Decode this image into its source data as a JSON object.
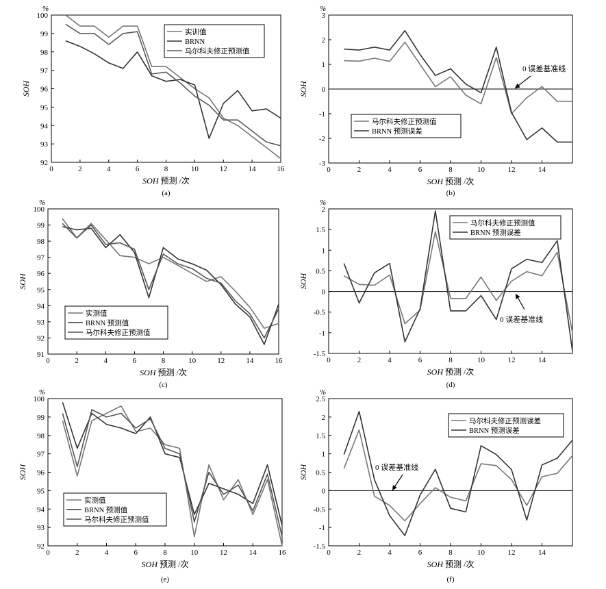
{
  "chart_data": [
    {
      "type": "line",
      "caption": "(a)",
      "unit": "%",
      "ylabel": "SOH",
      "xlabel": "SOH 预测 /次",
      "xlim": [
        0,
        16
      ],
      "ylim": [
        92,
        100
      ],
      "xticks": [
        0,
        2,
        4,
        6,
        8,
        10,
        12,
        14,
        16
      ],
      "yticks": [
        92,
        93,
        94,
        95,
        96,
        97,
        98,
        99,
        100
      ],
      "legend_position": "top-right",
      "x": [
        1,
        2,
        3,
        4,
        5,
        6,
        7,
        8,
        9,
        10,
        11,
        12,
        13,
        14,
        15,
        16
      ],
      "series": [
        {
          "name": "实训值",
          "color": "#777777",
          "values": [
            100.0,
            99.4,
            99.4,
            98.8,
            99.4,
            99.4,
            97.2,
            97.2,
            96.6,
            96.0,
            95.5,
            94.4,
            94.0,
            93.4,
            92.8,
            92.2
          ]
        },
        {
          "name": "BRNN",
          "color": "#333333",
          "values": [
            98.6,
            98.3,
            97.9,
            97.4,
            97.1,
            98.0,
            96.7,
            96.4,
            96.5,
            96.2,
            93.3,
            95.2,
            95.9,
            94.8,
            94.9,
            94.4
          ]
        },
        {
          "name": "马尔科夫修正预测值",
          "color": "#5a5a5a",
          "values": [
            99.5,
            99.0,
            99.0,
            98.4,
            99.0,
            99.1,
            96.8,
            96.9,
            96.3,
            95.6,
            95.1,
            94.3,
            94.3,
            93.7,
            93.1,
            92.9
          ]
        }
      ]
    },
    {
      "type": "line",
      "caption": "(b)",
      "unit": "%",
      "ylabel": "SOH",
      "xlabel": "SOH 预测 /次",
      "xlim": [
        0,
        16
      ],
      "ylim": [
        -3,
        3
      ],
      "xticks": [
        0,
        2,
        4,
        6,
        8,
        10,
        12,
        14
      ],
      "yticks": [
        -3,
        -2,
        -1,
        0,
        1,
        2,
        3
      ],
      "baseline": 0,
      "annotation": "0 误差基准线",
      "legend_position": "bottom-left",
      "x": [
        1,
        2,
        3,
        4,
        5,
        6,
        7,
        8,
        9,
        10,
        11,
        12,
        13,
        14,
        15,
        16
      ],
      "series": [
        {
          "name": "马尔科夫修正预测值",
          "color": "#777777",
          "values": [
            1.15,
            1.13,
            1.25,
            1.12,
            1.9,
            1.0,
            0.1,
            0.5,
            -0.25,
            -0.6,
            1.28,
            -1.0,
            -0.35,
            0.1,
            -0.5,
            -0.5
          ]
        },
        {
          "name": "BRNN 预测误差",
          "color": "#333333",
          "values": [
            1.62,
            1.58,
            1.7,
            1.58,
            2.37,
            1.4,
            0.55,
            0.82,
            0.2,
            -0.15,
            1.7,
            -0.95,
            -2.05,
            -1.58,
            -2.15,
            -2.15
          ]
        }
      ]
    },
    {
      "type": "line",
      "caption": "(c)",
      "unit": "%",
      "ylabel": "SOH",
      "xlabel": "SOH 预测 /次",
      "xlim": [
        0,
        16
      ],
      "ylim": [
        91,
        100
      ],
      "xticks": [
        0,
        2,
        4,
        6,
        8,
        10,
        12,
        14,
        16
      ],
      "yticks": [
        91,
        92,
        93,
        94,
        95,
        96,
        97,
        98,
        99,
        100
      ],
      "legend_position": "bottom-left",
      "x": [
        1,
        2,
        3,
        4,
        5,
        6,
        7,
        8,
        9,
        10,
        11,
        12,
        13,
        14,
        15,
        16
      ],
      "series": [
        {
          "name": "实测值",
          "color": "#777777",
          "values": [
            99.4,
            98.2,
            99.1,
            98.1,
            97.1,
            97.0,
            96.6,
            97.0,
            96.5,
            96.0,
            95.5,
            95.8,
            94.9,
            93.9,
            92.6,
            92.9
          ]
        },
        {
          "name": "BRNN 预测值",
          "color": "#333333",
          "values": [
            98.9,
            98.7,
            98.8,
            97.6,
            98.4,
            97.3,
            94.5,
            97.6,
            96.9,
            96.6,
            96.2,
            95.3,
            94.1,
            93.3,
            91.6,
            94.1
          ]
        },
        {
          "name": "马尔科夫修正预测值",
          "color": "#555555",
          "values": [
            99.1,
            98.2,
            99.0,
            97.8,
            97.9,
            97.5,
            95.0,
            97.2,
            96.6,
            96.3,
            95.7,
            95.4,
            94.3,
            93.5,
            92.0,
            93.8
          ]
        }
      ]
    },
    {
      "type": "line",
      "caption": "(d)",
      "unit": "%",
      "ylabel": "SOH",
      "xlabel": "SOH 预测 /次",
      "xlim": [
        0,
        16
      ],
      "ylim": [
        -1.5,
        2
      ],
      "xticks": [
        0,
        2,
        4,
        6,
        8,
        10,
        12,
        14
      ],
      "yticks": [
        -1.5,
        -1,
        -0.5,
        0,
        0.5,
        1,
        1.5,
        2
      ],
      "baseline": 0,
      "annotation": "0 误差基准线",
      "legend_position": "top-right",
      "x": [
        1,
        2,
        3,
        4,
        5,
        6,
        7,
        8,
        9,
        10,
        11,
        12,
        13,
        14,
        15,
        16
      ],
      "series": [
        {
          "name": "马尔科夫修正预测值",
          "color": "#777777",
          "values": [
            0.38,
            0.17,
            0.15,
            0.4,
            -0.78,
            -0.45,
            1.45,
            -0.17,
            -0.17,
            0.35,
            -0.22,
            0.25,
            0.48,
            0.38,
            0.95,
            -1.0
          ]
        },
        {
          "name": "BRNN 预测误差",
          "color": "#333333",
          "values": [
            0.68,
            -0.28,
            0.45,
            0.68,
            -1.22,
            -0.42,
            1.95,
            -0.47,
            -0.47,
            -0.1,
            -0.68,
            0.55,
            0.78,
            0.7,
            1.23,
            -1.45
          ]
        }
      ]
    },
    {
      "type": "line",
      "caption": "(e)",
      "unit": "%",
      "ylabel": "SOH",
      "xlabel": "SOH 预测 /次",
      "xlim": [
        0,
        16
      ],
      "ylim": [
        92,
        100
      ],
      "xticks": [
        0,
        2,
        4,
        6,
        8,
        10,
        12,
        14,
        16
      ],
      "yticks": [
        92,
        93,
        94,
        95,
        96,
        97,
        98,
        99,
        100
      ],
      "legend_position": "bottom-left",
      "x": [
        1,
        2,
        3,
        4,
        5,
        6,
        7,
        8,
        9,
        10,
        11,
        12,
        13,
        14,
        15,
        16
      ],
      "series": [
        {
          "name": "实测值",
          "color": "#777777",
          "values": [
            98.8,
            95.8,
            98.8,
            99.2,
            99.6,
            98.2,
            98.4,
            97.5,
            97.3,
            92.5,
            96.4,
            94.5,
            95.6,
            93.7,
            95.6,
            92.0
          ]
        },
        {
          "name": "BRNN 预测值",
          "color": "#333333",
          "values": [
            99.8,
            97.3,
            99.2,
            98.6,
            98.4,
            98.1,
            99.0,
            97.0,
            96.8,
            93.7,
            95.4,
            95.1,
            94.8,
            94.3,
            96.4,
            93.1
          ]
        },
        {
          "name": "马尔科夫修正预测值",
          "color": "#555555",
          "values": [
            99.2,
            96.3,
            99.4,
            99.0,
            99.2,
            98.4,
            98.9,
            97.3,
            97.0,
            93.3,
            96.0,
            94.8,
            95.3,
            93.9,
            95.9,
            92.5
          ]
        }
      ]
    },
    {
      "type": "line",
      "caption": "(f)",
      "unit": "%",
      "ylabel": "SOH",
      "xlabel": "SOH 预测 /次",
      "xlim": [
        0,
        16
      ],
      "ylim": [
        -1.5,
        2.5
      ],
      "xticks": [
        0,
        2,
        4,
        6,
        8,
        10,
        12,
        14
      ],
      "yticks": [
        -1.5,
        -1,
        -0.5,
        0,
        0.5,
        1,
        1.5,
        2,
        2.5
      ],
      "baseline": 0,
      "annotation": "0 误差基准线",
      "legend_position": "top-right",
      "x": [
        1,
        2,
        3,
        4,
        5,
        6,
        7,
        8,
        9,
        10,
        11,
        12,
        13,
        14,
        15,
        16
      ],
      "series": [
        {
          "name": "马尔科夫修正预测误差",
          "color": "#777777",
          "values": [
            0.6,
            1.65,
            -0.15,
            -0.4,
            -0.82,
            -0.35,
            0.08,
            -0.18,
            -0.28,
            0.73,
            0.68,
            0.3,
            -0.4,
            0.38,
            0.47,
            0.95
          ]
        },
        {
          "name": "BRNN 预测误差",
          "color": "#333333",
          "values": [
            0.98,
            2.15,
            0.3,
            -0.68,
            -1.22,
            -0.12,
            0.58,
            -0.48,
            -0.58,
            1.22,
            0.98,
            0.57,
            -0.8,
            0.7,
            0.88,
            1.37
          ]
        }
      ]
    }
  ]
}
